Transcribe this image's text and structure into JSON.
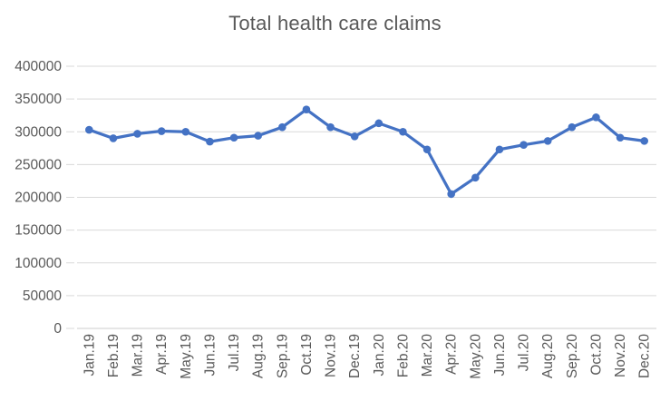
{
  "chart_data": {
    "type": "line",
    "title": "Total health care claims",
    "xlabel": "",
    "ylabel": "",
    "categories": [
      "Jan.19",
      "Feb.19",
      "Mar.19",
      "Apr.19",
      "May.19",
      "Jun.19",
      "Jul.19",
      "Aug.19",
      "Sep.19",
      "Oct.19",
      "Nov.19",
      "Dec.19",
      "Jan.20",
      "Feb.20",
      "Mar.20",
      "Apr.20",
      "May.20",
      "Jun.20",
      "Jul.20",
      "Aug.20",
      "Sep.20",
      "Oct.20",
      "Nov.20",
      "Dec.20"
    ],
    "values": [
      303000,
      290000,
      297000,
      301000,
      300000,
      285000,
      291000,
      294000,
      307000,
      334000,
      307000,
      293000,
      313000,
      300000,
      273000,
      205000,
      230000,
      273000,
      280000,
      286000,
      307000,
      322000,
      291000,
      286000
    ],
    "ylim": [
      0,
      400000
    ],
    "y_ticks": [
      0,
      50000,
      100000,
      150000,
      200000,
      250000,
      300000,
      350000,
      400000
    ],
    "grid": true,
    "legend": false,
    "marker": "circle",
    "colors": {
      "series": "#4472C4",
      "grid": "#D9D9D9",
      "axis": "#CCCCCC",
      "text": "#595959",
      "title": "#595959",
      "background": "#FFFFFF"
    }
  }
}
